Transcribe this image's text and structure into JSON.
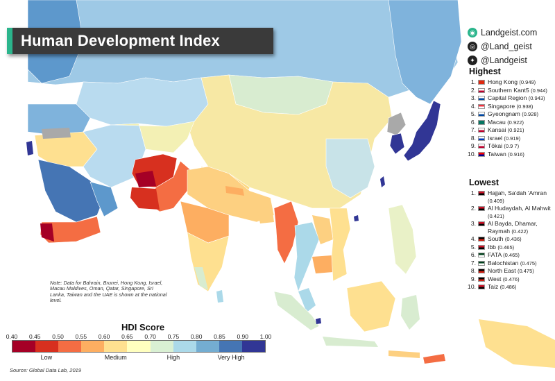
{
  "title": "Human Development Index",
  "social": [
    {
      "icon": "globe-icon",
      "glyph": "◉",
      "text": "Landgeist.com"
    },
    {
      "icon": "instagram-icon",
      "glyph": "◎",
      "text": "@Land_geist"
    },
    {
      "icon": "twitter-icon",
      "glyph": "✦",
      "text": "@Landgeist"
    }
  ],
  "highest": {
    "heading": "Highest",
    "items": [
      {
        "rank": "1.",
        "name": "Hong Kong",
        "value": "(0.949)",
        "flag": [
          "#de2910",
          "#de2910"
        ]
      },
      {
        "rank": "2.",
        "name": "Southern Kant5",
        "value": "(0.944)",
        "flag": [
          "#ffffff",
          "#bc002d"
        ]
      },
      {
        "rank": "3.",
        "name": "Capital Region",
        "value": "(0.943)",
        "flag": [
          "#ffffff",
          "#0047a0"
        ]
      },
      {
        "rank": "4.",
        "name": "Singapore",
        "value": "(0.938)",
        "flag": [
          "#ef3340",
          "#ffffff"
        ]
      },
      {
        "rank": "5.",
        "name": "Gyeongnam",
        "value": "(0.928)",
        "flag": [
          "#ffffff",
          "#0047a0"
        ]
      },
      {
        "rank": "6.",
        "name": "Macau",
        "value": "(0.922)",
        "flag": [
          "#067662",
          "#067662"
        ]
      },
      {
        "rank": "7.",
        "name": "Kansai",
        "value": "(0.921)",
        "flag": [
          "#ffffff",
          "#bc002d"
        ]
      },
      {
        "rank": "8.",
        "name": "Israel",
        "value": "(0.919)",
        "flag": [
          "#ffffff",
          "#0038b8"
        ]
      },
      {
        "rank": "9.",
        "name": "Tōkai",
        "value": "(0.9 7)",
        "flag": [
          "#ffffff",
          "#bc002d"
        ]
      },
      {
        "rank": "10.",
        "name": "Taiwan",
        "value": "(0.916)",
        "flag": [
          "#fe0000",
          "#000095"
        ]
      }
    ]
  },
  "lowest": {
    "heading": "Lowest",
    "items": [
      {
        "rank": "1.",
        "name": "Hajjah, Sa'dah 'Amran",
        "value": "(0.409)",
        "flag": [
          "#ce1126",
          "#000000"
        ]
      },
      {
        "rank": "2.",
        "name": "Al Hudaydah, Al Mahwit",
        "value": "(0.421)",
        "flag": [
          "#ce1126",
          "#000000"
        ]
      },
      {
        "rank": "3.",
        "name": "Al Bayda, Dhamar, Raymah",
        "value": "(0.422)",
        "flag": [
          "#ce1126",
          "#000000"
        ]
      },
      {
        "rank": "4.",
        "name": "South",
        "value": "(0.436)",
        "flag": [
          "#000000",
          "#d32011"
        ]
      },
      {
        "rank": "5.",
        "name": "Ibb",
        "value": "(0.465)",
        "flag": [
          "#ce1126",
          "#000000"
        ]
      },
      {
        "rank": "6.",
        "name": "FATA",
        "value": "(0.465)",
        "flag": [
          "#01411c",
          "#ffffff"
        ]
      },
      {
        "rank": "7.",
        "name": "Balochistan",
        "value": "(0.475)",
        "flag": [
          "#01411c",
          "#ffffff"
        ]
      },
      {
        "rank": "8.",
        "name": "North East",
        "value": "(0.475)",
        "flag": [
          "#000000",
          "#d32011"
        ]
      },
      {
        "rank": "9.",
        "name": "West",
        "value": "(0.476)",
        "flag": [
          "#000000",
          "#d32011"
        ]
      },
      {
        "rank": "10.",
        "name": "Taiz",
        "value": "(0.486)",
        "flag": [
          "#ce1126",
          "#000000"
        ]
      }
    ]
  },
  "note": "Note: Data for Bahrain, Brunei, Hong Kong, Israel, Macau Maldives, Oman, Qatar, Singapore, Sri Lanka, Taiwan and the UAE is shown at the national level.",
  "legend": {
    "title": "HDI Score",
    "ticks": [
      "0.40",
      "0.45",
      "0.50",
      "0.55",
      "0.60",
      "0.65",
      "0.70",
      "0.75",
      "0.80",
      "0.85",
      "0.90",
      "1.00"
    ],
    "colors": [
      "#a50026",
      "#d7301f",
      "#f46d43",
      "#fdae61",
      "#fee090",
      "#ffffbf",
      "#d9f0d3",
      "#abd9e9",
      "#74add1",
      "#4575b4",
      "#313695"
    ],
    "categories": [
      {
        "label": "Low",
        "from": 0,
        "to": 3
      },
      {
        "label": "Medium",
        "from": 3,
        "to": 6
      },
      {
        "label": "High",
        "from": 6,
        "to": 8
      },
      {
        "label": "Very High",
        "from": 8,
        "to": 11
      }
    ]
  },
  "source": "Source: Global Data Lab, 2019",
  "colors": {
    "ocean": "#ffffff",
    "no_data": "#a9a9a9",
    "banner": "#3a3a3a",
    "accent": "#2bb58c"
  }
}
